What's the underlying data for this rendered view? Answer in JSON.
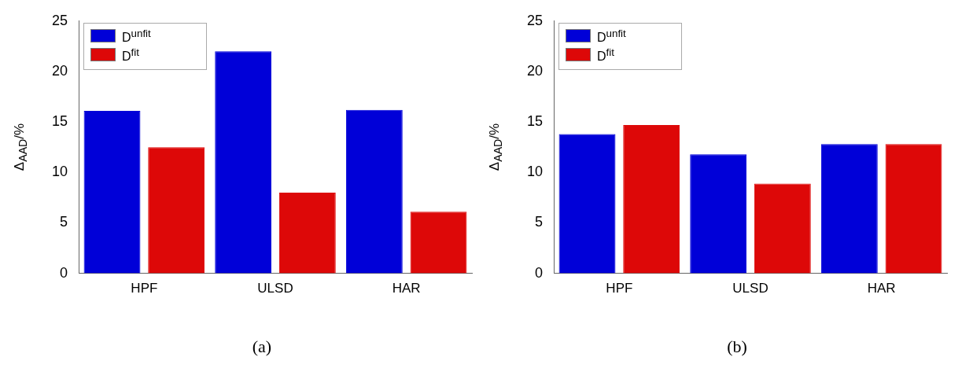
{
  "chart_data": [
    {
      "type": "bar",
      "categories": [
        "HPF",
        "ULSD",
        "HAR"
      ],
      "ylabel": "Δ$_{AAD}$/%",
      "ylim": [
        0,
        25
      ],
      "yticks": [
        0,
        5,
        10,
        15,
        20,
        25
      ],
      "grid": false,
      "legend": "top left",
      "annotations": [
        "(a)"
      ],
      "series": [
        {
          "name": "D$^{unfit}$",
          "color": "#0000d8",
          "values": [
            16.1,
            22.0,
            16.2
          ]
        },
        {
          "name": "D$^{fit}$",
          "color": "#dd0808",
          "values": [
            12.5,
            8.0,
            6.1
          ]
        }
      ]
    },
    {
      "type": "bar",
      "categories": [
        "HPF",
        "ULSD",
        "HAR"
      ],
      "ylabel": "Δ$_{AAD}$/%",
      "ylim": [
        0,
        25
      ],
      "yticks": [
        0,
        5,
        10,
        15,
        20,
        25
      ],
      "grid": false,
      "legend": "top left",
      "annotations": [
        "(b)"
      ],
      "series": [
        {
          "name": "D$^{unfit}$",
          "color": "#0000d8",
          "values": [
            13.8,
            11.8,
            12.8
          ]
        },
        {
          "name": "D$^{fit}$",
          "color": "#dd0808",
          "values": [
            14.7,
            8.9,
            12.8
          ]
        }
      ]
    }
  ]
}
